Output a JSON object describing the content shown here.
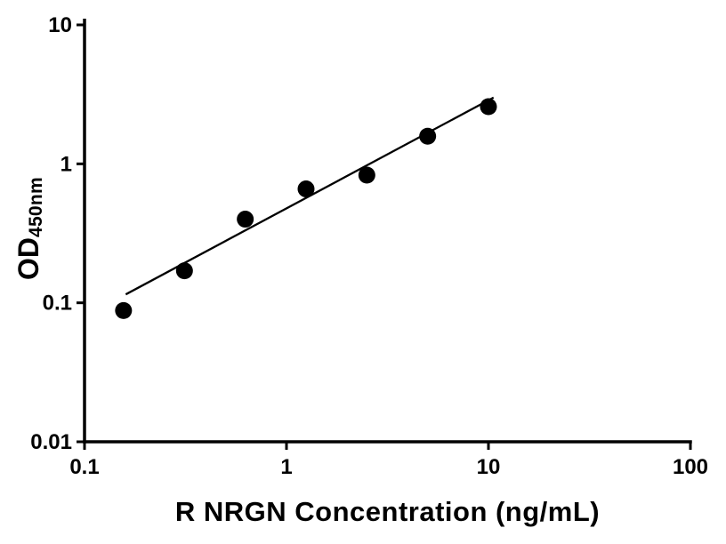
{
  "figure": {
    "background": "#ffffff"
  },
  "colors": {
    "axis": "#000000",
    "marker": "#000000",
    "fit_line": "#000000",
    "text": "#000000"
  },
  "chart_data": {
    "type": "scatter",
    "title": "",
    "xlabel": "R NRGN Concentration (ng/mL)",
    "ylabel": "OD450nm",
    "ylabel_main": "OD",
    "ylabel_sub": "450nm",
    "x_scale": "log10",
    "y_scale": "log10",
    "xlim": [
      0.1,
      100
    ],
    "ylim": [
      0.01,
      10
    ],
    "grid": false,
    "legend": "none",
    "x_ticks": {
      "values": [
        0.1,
        1,
        10,
        100
      ],
      "labels": [
        "0.1",
        "1",
        "10",
        "100"
      ]
    },
    "y_ticks": {
      "values": [
        0.01,
        0.1,
        1,
        10
      ],
      "labels": [
        "0.01",
        "0.1",
        "1",
        "10"
      ]
    },
    "series": [
      {
        "name": "standard-curve-fit-line",
        "type": "line",
        "color": "#000000",
        "x": [
          0.16,
          10.6
        ],
        "y": [
          0.115,
          3.0
        ]
      },
      {
        "name": "standard-curve-points",
        "type": "scatter",
        "marker": "filled-circle",
        "marker_size": 9.5,
        "color": "#000000",
        "x": [
          0.156,
          0.3125,
          0.625,
          1.25,
          2.5,
          5,
          10
        ],
        "y": [
          0.088,
          0.17,
          0.4,
          0.66,
          0.83,
          1.58,
          2.58
        ]
      }
    ]
  }
}
